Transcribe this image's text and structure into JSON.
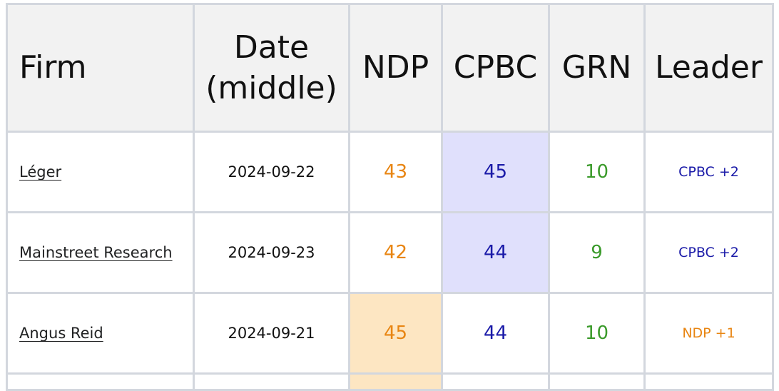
{
  "table": {
    "headers": {
      "firm": "Firm",
      "date_line1": "Date",
      "date_line2": "(middle)",
      "ndp": "NDP",
      "cpbc": "CPBC",
      "grn": "GRN",
      "leader": "Leader"
    },
    "rows": [
      {
        "firm": "Léger",
        "date": "2024-09-22",
        "ndp": "43",
        "cpbc": "45",
        "grn": "10",
        "leader": "CPBC +2"
      },
      {
        "firm": "Mainstreet Research",
        "date": "2024-09-23",
        "ndp": "42",
        "cpbc": "44",
        "grn": "9",
        "leader": "CPBC +2"
      },
      {
        "firm": "Angus Reid",
        "date": "2024-09-21",
        "ndp": "45",
        "cpbc": "44",
        "grn": "10",
        "leader": "NDP +1"
      }
    ]
  },
  "colors": {
    "ndp": "#e88512",
    "cpbc": "#1a1aa8",
    "grn": "#3a9a2a",
    "cpbc_highlight": "#e0e0fc",
    "ndp_highlight": "#fde6c2",
    "header_bg": "#f2f2f2",
    "border": "#d3d7de"
  }
}
